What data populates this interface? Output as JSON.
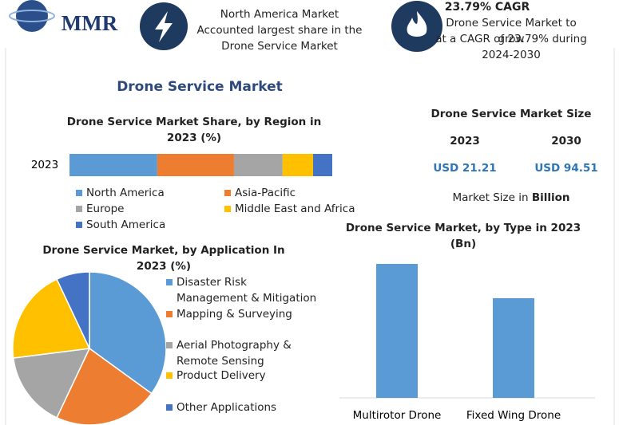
{
  "header": {
    "logo": "MMR",
    "highlight": [
      "North America Market",
      "Accounted largest share in the",
      "Drone Service Market"
    ],
    "cagr_title": "23.79% CAGR",
    "cagr_text": [
      "Drone Service Market to grow",
      "at a CAGR of 23.79% during",
      "2024-2030"
    ]
  },
  "title": "Drone Service Market",
  "market_size": {
    "title": "Drone Service Market Size",
    "years": [
      "2023",
      "2030"
    ],
    "values": [
      "USD 21.21",
      "USD 94.51"
    ],
    "note": "Market Size in",
    "note_unit": "Billion"
  },
  "chart_data": [
    {
      "type": "stacked-bar",
      "title": "Drone Service Market Share, by Region in 2023 (%)",
      "categories": [
        "2023"
      ],
      "series": [
        {
          "name": "North America",
          "color": "#5b9bd5",
          "values": [
            33.4
          ]
        },
        {
          "name": "Asia-Pacific",
          "color": "#ed7d31",
          "values": [
            29.2
          ]
        },
        {
          "name": "Europe",
          "color": "#a5a5a5",
          "values": [
            18.5
          ]
        },
        {
          "name": "Middle East and Africa",
          "color": "#ffc000",
          "values": [
            11.6
          ]
        },
        {
          "name": "South America",
          "color": "#4472c4",
          "values": [
            7.3
          ]
        }
      ]
    },
    {
      "type": "pie",
      "title": "Drone Service Market, by Application In 2023 (%)",
      "categories": [
        "Disaster Risk Management & Mitigation",
        "Mapping & Surveying",
        "Aerial Photography & Remote Sensing",
        "Product Delivery",
        "Other Applications"
      ],
      "values": [
        35,
        22,
        16,
        20,
        7
      ],
      "colors": [
        "#5b9bd5",
        "#ed7d31",
        "#a5a5a5",
        "#ffc000",
        "#4472c4"
      ]
    },
    {
      "type": "bar",
      "title": "Drone Service Market, by Type in 2023 (Bn)",
      "categories": [
        "Multirotor Drone",
        "Fixed Wing Drone"
      ],
      "values": [
        12.16,
        9.05
      ],
      "color": "#5b9bd5"
    }
  ]
}
